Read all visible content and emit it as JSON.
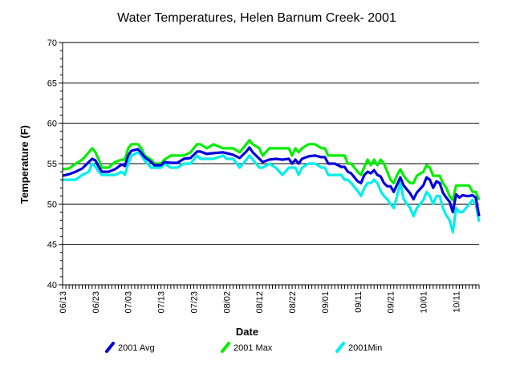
{
  "chart_data": {
    "type": "line",
    "title": "Water Temperatures, Helen Barnum Creek- 2001",
    "xlabel": "Date",
    "ylabel": "Temperature (F)",
    "ylim": [
      40,
      70
    ],
    "yticks": [
      40,
      45,
      50,
      55,
      60,
      65,
      70
    ],
    "grid": "horizontal",
    "legend_position": "bottom",
    "x_start": "06/13",
    "x_end": "10/18",
    "xtick_labels": [
      "06/13",
      "06/23",
      "07/03",
      "07/13",
      "07/23",
      "08/02",
      "08/12",
      "08/22",
      "09/01",
      "09/11",
      "09/21",
      "10/01",
      "10/11"
    ],
    "series": [
      {
        "name": "2001 Avg",
        "color": "#0000dd",
        "icon": "marker-icon",
        "points": [
          [
            "06/13",
            53.5
          ],
          [
            "06/15",
            53.7
          ],
          [
            "06/17",
            54.0
          ],
          [
            "06/19",
            54.4
          ],
          [
            "06/21",
            55.2
          ],
          [
            "06/22",
            55.6
          ],
          [
            "06/23",
            55.4
          ],
          [
            "06/24",
            54.6
          ],
          [
            "06/25",
            54.0
          ],
          [
            "06/27",
            54.0
          ],
          [
            "06/29",
            54.3
          ],
          [
            "07/01",
            54.9
          ],
          [
            "07/02",
            54.7
          ],
          [
            "07/03",
            56.0
          ],
          [
            "07/04",
            56.6
          ],
          [
            "07/06",
            56.8
          ],
          [
            "07/07",
            56.3
          ],
          [
            "07/08",
            55.8
          ],
          [
            "07/10",
            55.2
          ],
          [
            "07/11",
            54.8
          ],
          [
            "07/13",
            54.8
          ],
          [
            "07/14",
            55.2
          ],
          [
            "07/16",
            55.1
          ],
          [
            "07/18",
            55.1
          ],
          [
            "07/20",
            55.6
          ],
          [
            "07/22",
            55.7
          ],
          [
            "07/24",
            56.5
          ],
          [
            "07/25",
            56.5
          ],
          [
            "07/27",
            56.2
          ],
          [
            "07/29",
            56.3
          ],
          [
            "08/01",
            56.4
          ],
          [
            "08/02",
            56.3
          ],
          [
            "08/04",
            56.1
          ],
          [
            "08/06",
            55.7
          ],
          [
            "08/08",
            56.5
          ],
          [
            "08/09",
            57.0
          ],
          [
            "08/10",
            56.4
          ],
          [
            "08/12",
            55.6
          ],
          [
            "08/13",
            55.2
          ],
          [
            "08/15",
            55.5
          ],
          [
            "08/17",
            55.6
          ],
          [
            "08/19",
            55.5
          ],
          [
            "08/21",
            55.6
          ],
          [
            "08/22",
            55.0
          ],
          [
            "08/23",
            55.5
          ],
          [
            "08/24",
            55.0
          ],
          [
            "08/25",
            55.6
          ],
          [
            "08/27",
            55.9
          ],
          [
            "08/29",
            56.0
          ],
          [
            "08/31",
            55.8
          ],
          [
            "09/01",
            55.8
          ],
          [
            "09/02",
            55.0
          ],
          [
            "09/04",
            55.0
          ],
          [
            "09/06",
            54.6
          ],
          [
            "09/07",
            54.6
          ],
          [
            "09/08",
            54.0
          ],
          [
            "09/09",
            53.8
          ],
          [
            "09/11",
            52.8
          ],
          [
            "09/12",
            52.6
          ],
          [
            "09/13",
            53.6
          ],
          [
            "09/14",
            54.0
          ],
          [
            "09/15",
            53.8
          ],
          [
            "09/16",
            54.2
          ],
          [
            "09/17",
            53.6
          ],
          [
            "09/18",
            53.4
          ],
          [
            "09/19",
            52.6
          ],
          [
            "09/20",
            52.2
          ],
          [
            "09/21",
            52.2
          ],
          [
            "09/22",
            51.5
          ],
          [
            "09/23",
            52.4
          ],
          [
            "09/24",
            53.3
          ],
          [
            "09/25",
            52.3
          ],
          [
            "09/26",
            51.8
          ],
          [
            "09/27",
            51.3
          ],
          [
            "09/28",
            50.6
          ],
          [
            "09/29",
            51.4
          ],
          [
            "10/01",
            52.3
          ],
          [
            "10/02",
            53.3
          ],
          [
            "10/03",
            53.0
          ],
          [
            "10/04",
            52.0
          ],
          [
            "10/05",
            52.8
          ],
          [
            "10/06",
            52.6
          ],
          [
            "10/07",
            51.4
          ],
          [
            "10/08",
            50.8
          ],
          [
            "10/09",
            50.3
          ],
          [
            "10/10",
            49.0
          ],
          [
            "10/11",
            51.2
          ],
          [
            "10/12",
            50.8
          ],
          [
            "10/13",
            51.1
          ],
          [
            "10/14",
            51.0
          ],
          [
            "10/15",
            51.0
          ],
          [
            "10/16",
            51.1
          ],
          [
            "10/17",
            50.8
          ],
          [
            "10/18",
            48.5
          ]
        ]
      },
      {
        "name": "2001 Max",
        "color": "#00ee00",
        "icon": "marker-icon",
        "points": [
          [
            "06/13",
            54.3
          ],
          [
            "06/15",
            54.4
          ],
          [
            "06/17",
            55.0
          ],
          [
            "06/19",
            55.5
          ],
          [
            "06/21",
            56.4
          ],
          [
            "06/22",
            56.9
          ],
          [
            "06/23",
            56.4
          ],
          [
            "06/24",
            55.5
          ],
          [
            "06/25",
            54.5
          ],
          [
            "06/27",
            54.5
          ],
          [
            "06/29",
            55.2
          ],
          [
            "07/01",
            55.5
          ],
          [
            "07/02",
            55.5
          ],
          [
            "07/03",
            56.9
          ],
          [
            "07/04",
            57.4
          ],
          [
            "07/06",
            57.4
          ],
          [
            "07/07",
            56.9
          ],
          [
            "07/08",
            56.0
          ],
          [
            "07/10",
            55.5
          ],
          [
            "07/11",
            55.0
          ],
          [
            "07/13",
            55.0
          ],
          [
            "07/14",
            55.5
          ],
          [
            "07/16",
            56.0
          ],
          [
            "07/18",
            56.0
          ],
          [
            "07/20",
            56.0
          ],
          [
            "07/22",
            56.4
          ],
          [
            "07/24",
            57.4
          ],
          [
            "07/25",
            57.4
          ],
          [
            "07/27",
            56.9
          ],
          [
            "07/29",
            57.4
          ],
          [
            "08/01",
            56.9
          ],
          [
            "08/02",
            56.9
          ],
          [
            "08/04",
            56.9
          ],
          [
            "08/06",
            56.4
          ],
          [
            "08/08",
            57.4
          ],
          [
            "08/09",
            57.9
          ],
          [
            "08/10",
            57.4
          ],
          [
            "08/12",
            56.9
          ],
          [
            "08/13",
            56.0
          ],
          [
            "08/15",
            56.9
          ],
          [
            "08/17",
            56.9
          ],
          [
            "08/19",
            56.9
          ],
          [
            "08/21",
            56.9
          ],
          [
            "08/22",
            56.0
          ],
          [
            "08/23",
            56.9
          ],
          [
            "08/24",
            56.4
          ],
          [
            "08/25",
            56.9
          ],
          [
            "08/27",
            57.4
          ],
          [
            "08/29",
            57.4
          ],
          [
            "08/31",
            56.9
          ],
          [
            "09/01",
            56.9
          ],
          [
            "09/02",
            56.0
          ],
          [
            "09/04",
            56.0
          ],
          [
            "09/06",
            56.0
          ],
          [
            "09/07",
            56.0
          ],
          [
            "09/08",
            55.0
          ],
          [
            "09/09",
            55.0
          ],
          [
            "09/11",
            54.0
          ],
          [
            "09/12",
            53.6
          ],
          [
            "09/13",
            54.6
          ],
          [
            "09/14",
            55.5
          ],
          [
            "09/15",
            54.8
          ],
          [
            "09/16",
            55.5
          ],
          [
            "09/17",
            54.8
          ],
          [
            "09/18",
            55.5
          ],
          [
            "09/19",
            55.0
          ],
          [
            "09/20",
            54.0
          ],
          [
            "09/21",
            53.0
          ],
          [
            "09/22",
            52.6
          ],
          [
            "09/23",
            53.6
          ],
          [
            "09/24",
            54.3
          ],
          [
            "09/25",
            53.5
          ],
          [
            "09/26",
            53.0
          ],
          [
            "09/27",
            52.6
          ],
          [
            "09/28",
            52.6
          ],
          [
            "09/29",
            53.5
          ],
          [
            "10/01",
            54.0
          ],
          [
            "10/02",
            54.8
          ],
          [
            "10/03",
            54.5
          ],
          [
            "10/04",
            53.5
          ],
          [
            "10/05",
            53.5
          ],
          [
            "10/06",
            53.5
          ],
          [
            "10/07",
            52.6
          ],
          [
            "10/08",
            52.0
          ],
          [
            "10/09",
            51.0
          ],
          [
            "10/10",
            50.5
          ],
          [
            "10/11",
            52.3
          ],
          [
            "10/12",
            52.3
          ],
          [
            "10/13",
            52.3
          ],
          [
            "10/14",
            52.3
          ],
          [
            "10/15",
            52.3
          ],
          [
            "10/16",
            51.5
          ],
          [
            "10/17",
            51.5
          ],
          [
            "10/18",
            50.5
          ]
        ]
      },
      {
        "name": "2001Min",
        "color": "#00eeee",
        "icon": "marker-icon",
        "points": [
          [
            "06/13",
            53.0
          ],
          [
            "06/15",
            53.0
          ],
          [
            "06/17",
            53.0
          ],
          [
            "06/19",
            53.6
          ],
          [
            "06/21",
            54.0
          ],
          [
            "06/22",
            55.0
          ],
          [
            "06/23",
            54.6
          ],
          [
            "06/24",
            54.0
          ],
          [
            "06/25",
            53.6
          ],
          [
            "06/27",
            53.6
          ],
          [
            "06/29",
            53.6
          ],
          [
            "07/01",
            54.0
          ],
          [
            "07/02",
            53.6
          ],
          [
            "07/03",
            55.0
          ],
          [
            "07/04",
            56.0
          ],
          [
            "07/06",
            56.4
          ],
          [
            "07/07",
            56.0
          ],
          [
            "07/08",
            55.4
          ],
          [
            "07/10",
            54.5
          ],
          [
            "07/11",
            54.5
          ],
          [
            "07/13",
            54.5
          ],
          [
            "07/14",
            55.0
          ],
          [
            "07/16",
            54.5
          ],
          [
            "07/18",
            54.5
          ],
          [
            "07/20",
            55.0
          ],
          [
            "07/22",
            55.0
          ],
          [
            "07/24",
            56.0
          ],
          [
            "07/25",
            55.6
          ],
          [
            "07/27",
            55.6
          ],
          [
            "07/29",
            55.6
          ],
          [
            "08/01",
            56.0
          ],
          [
            "08/02",
            55.6
          ],
          [
            "08/04",
            55.6
          ],
          [
            "08/06",
            54.5
          ],
          [
            "08/08",
            55.5
          ],
          [
            "08/09",
            56.0
          ],
          [
            "08/10",
            55.5
          ],
          [
            "08/12",
            54.5
          ],
          [
            "08/13",
            54.5
          ],
          [
            "08/15",
            55.0
          ],
          [
            "08/17",
            54.5
          ],
          [
            "08/19",
            53.6
          ],
          [
            "08/21",
            54.5
          ],
          [
            "08/22",
            54.5
          ],
          [
            "08/23",
            54.5
          ],
          [
            "08/24",
            53.6
          ],
          [
            "08/25",
            54.5
          ],
          [
            "08/27",
            55.0
          ],
          [
            "08/29",
            55.0
          ],
          [
            "08/31",
            54.5
          ],
          [
            "09/01",
            54.5
          ],
          [
            "09/02",
            53.6
          ],
          [
            "09/04",
            53.6
          ],
          [
            "09/06",
            53.6
          ],
          [
            "09/07",
            53.0
          ],
          [
            "09/08",
            53.0
          ],
          [
            "09/09",
            52.6
          ],
          [
            "09/11",
            51.6
          ],
          [
            "09/12",
            51.0
          ],
          [
            "09/13",
            52.0
          ],
          [
            "09/14",
            52.6
          ],
          [
            "09/15",
            52.6
          ],
          [
            "09/16",
            53.0
          ],
          [
            "09/17",
            52.6
          ],
          [
            "09/18",
            51.6
          ],
          [
            "09/19",
            51.0
          ],
          [
            "09/20",
            50.6
          ],
          [
            "09/21",
            50.0
          ],
          [
            "09/22",
            49.5
          ],
          [
            "09/23",
            51.0
          ],
          [
            "09/24",
            52.6
          ],
          [
            "09/25",
            50.6
          ],
          [
            "09/26",
            50.0
          ],
          [
            "09/27",
            49.5
          ],
          [
            "09/28",
            48.5
          ],
          [
            "09/29",
            49.5
          ],
          [
            "10/01",
            50.5
          ],
          [
            "10/02",
            51.5
          ],
          [
            "10/03",
            51.0
          ],
          [
            "10/04",
            50.0
          ],
          [
            "10/05",
            51.0
          ],
          [
            "10/06",
            51.0
          ],
          [
            "10/07",
            49.5
          ],
          [
            "10/08",
            48.6
          ],
          [
            "10/09",
            48.0
          ],
          [
            "10/10",
            46.5
          ],
          [
            "10/11",
            49.5
          ],
          [
            "10/12",
            49.0
          ],
          [
            "10/13",
            49.0
          ],
          [
            "10/14",
            49.5
          ],
          [
            "10/15",
            50.0
          ],
          [
            "10/16",
            50.5
          ],
          [
            "10/17",
            50.0
          ],
          [
            "10/18",
            47.8
          ]
        ]
      }
    ]
  }
}
